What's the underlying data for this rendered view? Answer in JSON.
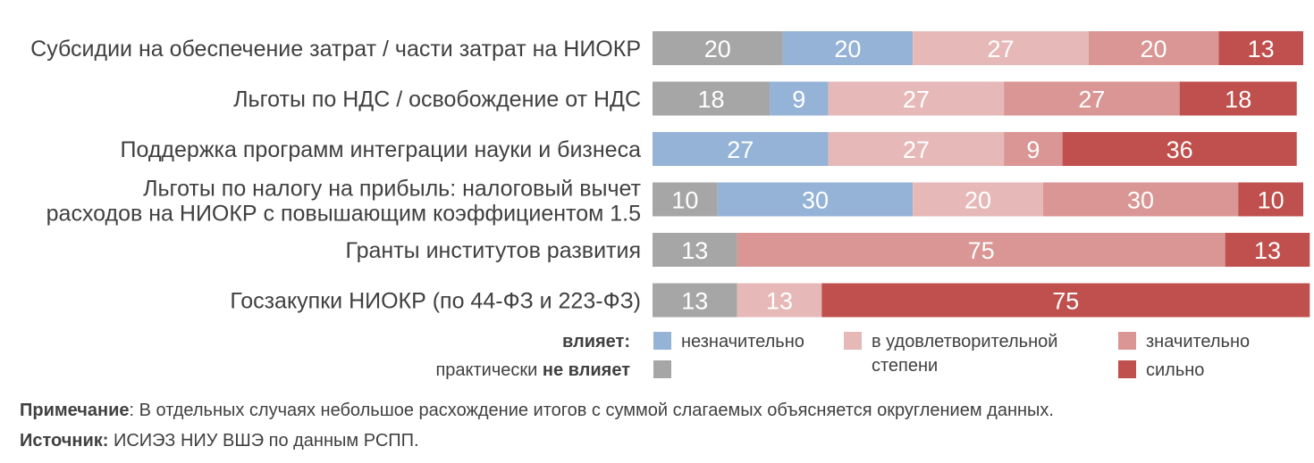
{
  "chart_data": {
    "type": "bar",
    "orientation": "horizontal",
    "stacked": true,
    "xlim": [
      0,
      100
    ],
    "categories": [
      [
        "Субсидии на обеспечение затрат / части затрат на НИОКР"
      ],
      [
        "Льготы по НДС / освобождение от НДС"
      ],
      [
        "Поддержка программ интеграции науки и бизнеса"
      ],
      [
        "Льготы по налогу на прибыль: налоговый вычет",
        "расходов на НИОКР с повышающим коэффициентом 1.5"
      ],
      [
        "Гранты институтов развития"
      ],
      [
        "Госзакупки НИОКР (по 44-ФЗ и 223-ФЗ)"
      ]
    ],
    "series": [
      {
        "name": "практически не влияет",
        "color": "#a6a6a6",
        "values": [
          20,
          18,
          0,
          10,
          13,
          13
        ]
      },
      {
        "name": "незначительно",
        "color": "#95b3d7",
        "values": [
          20,
          9,
          27,
          30,
          0,
          0
        ]
      },
      {
        "name": "в удовлетворительной степени",
        "color": "#e6b9b8",
        "values": [
          27,
          27,
          27,
          20,
          0,
          13
        ]
      },
      {
        "name": "значительно",
        "color": "#d99694",
        "values": [
          20,
          27,
          9,
          30,
          75,
          0
        ]
      },
      {
        "name": "сильно",
        "color": "#c0504d",
        "values": [
          13,
          18,
          36,
          10,
          13,
          75
        ]
      }
    ],
    "legend": {
      "position": "bottom",
      "group_label": "влияет:",
      "not_affect_prefix": "практически ",
      "not_affect_bold": "не влияет",
      "items": [
        {
          "lines": [
            "незначительно"
          ],
          "color": "#95b3d7"
        },
        {
          "lines": [
            "в удовлетворительной",
            "степени"
          ],
          "color": "#e6b9b8"
        },
        {
          "lines": [
            "значительно"
          ],
          "color": "#d99694"
        },
        {
          "lines": [
            "сильно"
          ],
          "color": "#c0504d"
        }
      ],
      "not_affect_color": "#a6a6a6"
    }
  },
  "notes": {
    "note_label": "Примечание",
    "note_text": ": В отдельных случаях небольшое расхождение итогов с суммой слагаемых объясняется округлением данных.",
    "source_label": "Источник:",
    "source_text": " ИСИЭЗ НИУ ВШЭ по данным РСПП."
  }
}
